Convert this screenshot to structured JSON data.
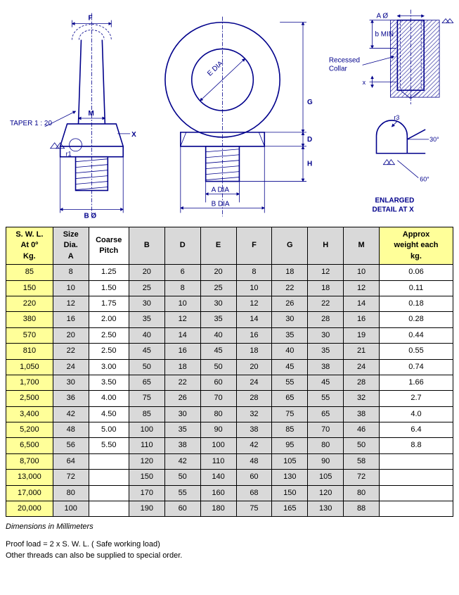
{
  "diagram": {
    "labels": {
      "taper": "TAPER 1 : 20",
      "F": "F",
      "M": "M",
      "X": "X",
      "r1": "r1",
      "BO": "B Ø",
      "EDIA": "E DIA",
      "ADIA": "A  DIA",
      "BDIA": "B  DIA",
      "G": "G",
      "D": "D",
      "H": "H",
      "AO": "A Ø",
      "bMIN": "b MIN",
      "recessed": "Recessed",
      "collar": "Collar",
      "x_small": "x",
      "r3": "r3",
      "deg30": "30°",
      "deg60": "60°",
      "enlarged1": "ENLARGED",
      "enlarged2": "DETAIL AT    X"
    }
  },
  "table": {
    "headers": {
      "swl": "S. W. L.\nAt 0º\nKg.",
      "size": "Size\nDia.\nA",
      "pitch": "Coarse\nPitch",
      "B": "B",
      "D": "D",
      "E": "E",
      "F": "F",
      "G": "G",
      "H": "H",
      "M": "M",
      "weight": "Approx\nweight each\nkg."
    },
    "rows": [
      {
        "swl": "85",
        "a": "8",
        "pitch": "1.25",
        "b": "20",
        "d": "6",
        "e": "20",
        "f": "8",
        "g": "18",
        "h": "12",
        "m": "10",
        "w": "0.06"
      },
      {
        "swl": "150",
        "a": "10",
        "pitch": "1.50",
        "b": "25",
        "d": "8",
        "e": "25",
        "f": "10",
        "g": "22",
        "h": "18",
        "m": "12",
        "w": "0.11"
      },
      {
        "swl": "220",
        "a": "12",
        "pitch": "1.75",
        "b": "30",
        "d": "10",
        "e": "30",
        "f": "12",
        "g": "26",
        "h": "22",
        "m": "14",
        "w": "0.18"
      },
      {
        "swl": "380",
        "a": "16",
        "pitch": "2.00",
        "b": "35",
        "d": "12",
        "e": "35",
        "f": "14",
        "g": "30",
        "h": "28",
        "m": "16",
        "w": "0.28"
      },
      {
        "swl": "570",
        "a": "20",
        "pitch": "2.50",
        "b": "40",
        "d": "14",
        "e": "40",
        "f": "16",
        "g": "35",
        "h": "30",
        "m": "19",
        "w": "0.44"
      },
      {
        "swl": "810",
        "a": "22",
        "pitch": "2.50",
        "b": "45",
        "d": "16",
        "e": "45",
        "f": "18",
        "g": "40",
        "h": "35",
        "m": "21",
        "w": "0.55"
      },
      {
        "swl": "1,050",
        "a": "24",
        "pitch": "3.00",
        "b": "50",
        "d": "18",
        "e": "50",
        "f": "20",
        "g": "45",
        "h": "38",
        "m": "24",
        "w": "0.74"
      },
      {
        "swl": "1,700",
        "a": "30",
        "pitch": "3.50",
        "b": "65",
        "d": "22",
        "e": "60",
        "f": "24",
        "g": "55",
        "h": "45",
        "m": "28",
        "w": "1.66"
      },
      {
        "swl": "2,500",
        "a": "36",
        "pitch": "4.00",
        "b": "75",
        "d": "26",
        "e": "70",
        "f": "28",
        "g": "65",
        "h": "55",
        "m": "32",
        "w": "2.7"
      },
      {
        "swl": "3,400",
        "a": "42",
        "pitch": "4.50",
        "b": "85",
        "d": "30",
        "e": "80",
        "f": "32",
        "g": "75",
        "h": "65",
        "m": "38",
        "w": "4.0"
      },
      {
        "swl": "5,200",
        "a": "48",
        "pitch": "5.00",
        "b": "100",
        "d": "35",
        "e": "90",
        "f": "38",
        "g": "85",
        "h": "70",
        "m": "46",
        "w": "6.4"
      },
      {
        "swl": "6,500",
        "a": "56",
        "pitch": "5.50",
        "b": "110",
        "d": "38",
        "e": "100",
        "f": "42",
        "g": "95",
        "h": "80",
        "m": "50",
        "w": "8.8"
      },
      {
        "swl": "8,700",
        "a": "64",
        "pitch": "",
        "b": "120",
        "d": "42",
        "e": "110",
        "f": "48",
        "g": "105",
        "h": "90",
        "m": "58",
        "w": ""
      },
      {
        "swl": "13,000",
        "a": "72",
        "pitch": "",
        "b": "150",
        "d": "50",
        "e": "140",
        "f": "60",
        "g": "130",
        "h": "105",
        "m": "72",
        "w": ""
      },
      {
        "swl": "17,000",
        "a": "80",
        "pitch": "",
        "b": "170",
        "d": "55",
        "e": "160",
        "f": "68",
        "g": "150",
        "h": "120",
        "m": "80",
        "w": ""
      },
      {
        "swl": "20,000",
        "a": "100",
        "pitch": "",
        "b": "190",
        "d": "60",
        "e": "180",
        "f": "75",
        "g": "165",
        "h": "130",
        "m": "88",
        "w": ""
      }
    ]
  },
  "footnotes": {
    "dim": "Dimensions in Millimeters",
    "proof": "Proof load = 2 x S. W. L. ( Safe working load)",
    "other": "Other threads can also be supplied to special order."
  },
  "style": {
    "yellow": "#ffff99",
    "grey": "#d9d9d9",
    "linecolor": "#00008b",
    "col_widths_pct": [
      10.5,
      8,
      9,
      8,
      8,
      8,
      8,
      8,
      8,
      8,
      16.5
    ]
  }
}
